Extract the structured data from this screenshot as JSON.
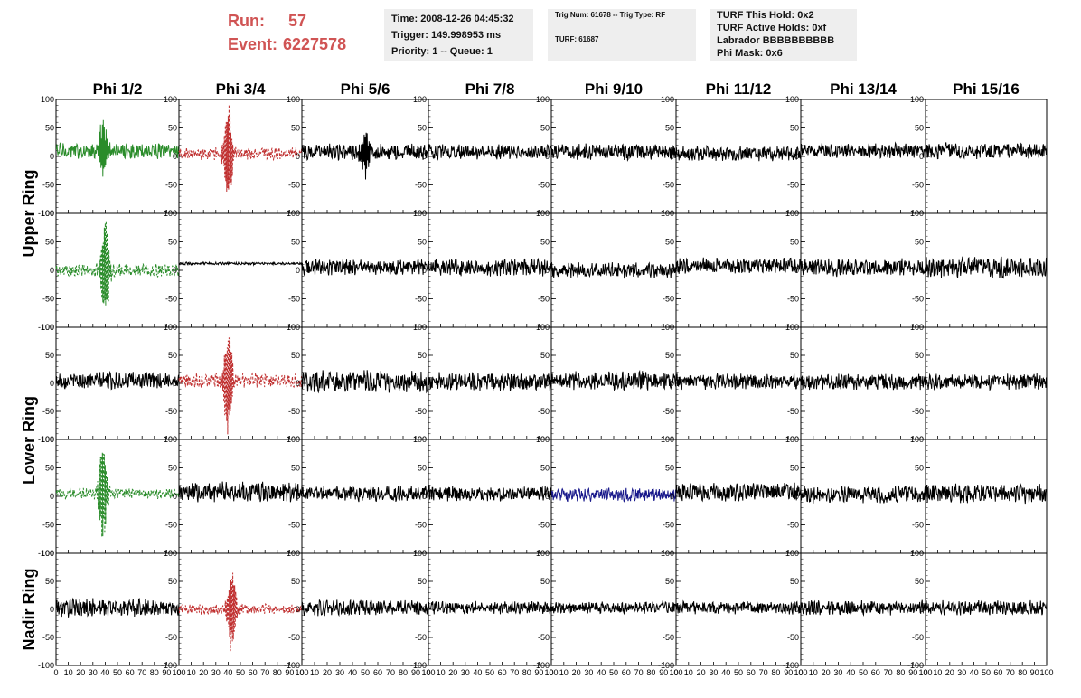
{
  "header": {
    "run_label": "Run:",
    "run_value": "57",
    "event_label": "Event:",
    "event_value": "6227578"
  },
  "info_panel_1": {
    "time": "Time: 2008-12-26 04:45:32",
    "trigger": "Trigger: 149.998953 ms",
    "priority": "Priority: 1 -- Queue: 1"
  },
  "info_panel_2": {
    "trig": "Trig Num: 61678 -- Trig Type: RF",
    "turf": "TURF: 61687"
  },
  "info_panel_3": {
    "this_hold": "TURF This Hold: 0x2",
    "active_holds": "TURF Active Holds: 0xf",
    "labrador": "Labrador BBBBBBBBBB",
    "phi_mask": "Phi Mask: 0x6"
  },
  "chart_data": {
    "type": "line",
    "columns": [
      "Phi 1/2",
      "Phi 3/4",
      "Phi 5/6",
      "Phi 7/8",
      "Phi 9/10",
      "Phi 11/12",
      "Phi 13/14",
      "Phi 15/16"
    ],
    "ring_labels": [
      "Upper Ring",
      "Lower Ring",
      "Nadir Ring"
    ],
    "xlim": [
      0,
      100
    ],
    "x_ticks": [
      "0",
      "10",
      "20",
      "30",
      "40",
      "50",
      "60",
      "70",
      "80",
      "90",
      "100"
    ],
    "ylim": [
      -100,
      100
    ],
    "y_ticks": [
      "100",
      "50",
      "0",
      "-50",
      "-100"
    ],
    "panels": [
      [
        {
          "color": "#2a8c2a",
          "dashed": false,
          "offset": 10,
          "amp": 12,
          "burst_center": 38,
          "burst_amp": 48
        },
        {
          "color": "#c03030",
          "dashed": true,
          "offset": 5,
          "amp": 9,
          "burst_center": 40,
          "burst_amp": 95
        },
        {
          "color": "#000000",
          "dashed": false,
          "offset": 8,
          "amp": 13,
          "burst_center": 50,
          "burst_amp": 40
        },
        {
          "color": "#000000",
          "dashed": false,
          "offset": 8,
          "amp": 11,
          "burst_center": 0,
          "burst_amp": 0
        },
        {
          "color": "#000000",
          "dashed": false,
          "offset": 8,
          "amp": 12,
          "burst_center": 0,
          "burst_amp": 0
        },
        {
          "color": "#000000",
          "dashed": false,
          "offset": 5,
          "amp": 11,
          "burst_center": 0,
          "burst_amp": 0
        },
        {
          "color": "#000000",
          "dashed": false,
          "offset": 10,
          "amp": 11,
          "burst_center": 0,
          "burst_amp": 0
        },
        {
          "color": "#000000",
          "dashed": false,
          "offset": 10,
          "amp": 12,
          "burst_center": 0,
          "burst_amp": 0
        }
      ],
      [
        {
          "color": "#2a8c2a",
          "dashed": true,
          "offset": 0,
          "amp": 10,
          "burst_center": 40,
          "burst_amp": 90
        },
        {
          "color": "#000000",
          "dashed": false,
          "offset": 12,
          "amp": 2,
          "burst_center": 0,
          "burst_amp": 0
        },
        {
          "color": "#000000",
          "dashed": false,
          "offset": 5,
          "amp": 12,
          "burst_center": 0,
          "burst_amp": 0
        },
        {
          "color": "#000000",
          "dashed": false,
          "offset": 5,
          "amp": 13,
          "burst_center": 0,
          "burst_amp": 0
        },
        {
          "color": "#000000",
          "dashed": false,
          "offset": 0,
          "amp": 12,
          "burst_center": 0,
          "burst_amp": 0
        },
        {
          "color": "#000000",
          "dashed": false,
          "offset": 8,
          "amp": 12,
          "burst_center": 0,
          "burst_amp": 0
        },
        {
          "color": "#000000",
          "dashed": false,
          "offset": 5,
          "amp": 13,
          "burst_center": 0,
          "burst_amp": 0
        },
        {
          "color": "#000000",
          "dashed": false,
          "offset": 5,
          "amp": 16,
          "burst_center": 0,
          "burst_amp": 0
        }
      ],
      [
        {
          "color": "#000000",
          "dashed": false,
          "offset": 5,
          "amp": 13,
          "burst_center": 0,
          "burst_amp": 0
        },
        {
          "color": "#c03030",
          "dashed": true,
          "offset": 5,
          "amp": 11,
          "burst_center": 40,
          "burst_amp": 95
        },
        {
          "color": "#000000",
          "dashed": false,
          "offset": 3,
          "amp": 17,
          "burst_center": 0,
          "burst_amp": 0
        },
        {
          "color": "#000000",
          "dashed": false,
          "offset": 3,
          "amp": 14,
          "burst_center": 0,
          "burst_amp": 0
        },
        {
          "color": "#000000",
          "dashed": false,
          "offset": 5,
          "amp": 14,
          "burst_center": 0,
          "burst_amp": 0
        },
        {
          "color": "#000000",
          "dashed": false,
          "offset": 3,
          "amp": 12,
          "burst_center": 0,
          "burst_amp": 0
        },
        {
          "color": "#000000",
          "dashed": false,
          "offset": 3,
          "amp": 13,
          "burst_center": 0,
          "burst_amp": 0
        },
        {
          "color": "#000000",
          "dashed": false,
          "offset": 3,
          "amp": 12,
          "burst_center": 0,
          "burst_amp": 0
        }
      ],
      [
        {
          "color": "#2a8c2a",
          "dashed": true,
          "offset": 5,
          "amp": 8,
          "burst_center": 38,
          "burst_amp": 85
        },
        {
          "color": "#000000",
          "dashed": false,
          "offset": 8,
          "amp": 15,
          "burst_center": 0,
          "burst_amp": 0
        },
        {
          "color": "#000000",
          "dashed": false,
          "offset": 5,
          "amp": 12,
          "burst_center": 0,
          "burst_amp": 0
        },
        {
          "color": "#000000",
          "dashed": false,
          "offset": 5,
          "amp": 12,
          "burst_center": 0,
          "burst_amp": 0
        },
        {
          "color": "#1a1a8c",
          "dashed": false,
          "offset": 3,
          "amp": 10,
          "burst_center": 0,
          "burst_amp": 0
        },
        {
          "color": "#000000",
          "dashed": false,
          "offset": 8,
          "amp": 14,
          "burst_center": 0,
          "burst_amp": 0
        },
        {
          "color": "#000000",
          "dashed": false,
          "offset": 3,
          "amp": 13,
          "burst_center": 0,
          "burst_amp": 0
        },
        {
          "color": "#000000",
          "dashed": false,
          "offset": 5,
          "amp": 15,
          "burst_center": 0,
          "burst_amp": 0
        }
      ],
      [
        {
          "color": "#000000",
          "dashed": false,
          "offset": 3,
          "amp": 14,
          "burst_center": 0,
          "burst_amp": 0
        },
        {
          "color": "#c03030",
          "dashed": true,
          "offset": 0,
          "amp": 8,
          "burst_center": 43,
          "burst_amp": 75
        },
        {
          "color": "#000000",
          "dashed": false,
          "offset": 3,
          "amp": 12,
          "burst_center": 0,
          "burst_amp": 0
        },
        {
          "color": "#000000",
          "dashed": false,
          "offset": 3,
          "amp": 10,
          "burst_center": 0,
          "burst_amp": 0
        },
        {
          "color": "#000000",
          "dashed": false,
          "offset": 3,
          "amp": 9,
          "burst_center": 0,
          "burst_amp": 0
        },
        {
          "color": "#000000",
          "dashed": false,
          "offset": 3,
          "amp": 10,
          "burst_center": 0,
          "burst_amp": 0
        },
        {
          "color": "#000000",
          "dashed": false,
          "offset": 3,
          "amp": 11,
          "burst_center": 0,
          "burst_amp": 0
        },
        {
          "color": "#000000",
          "dashed": false,
          "offset": 3,
          "amp": 11,
          "burst_center": 0,
          "burst_amp": 0
        }
      ]
    ]
  }
}
